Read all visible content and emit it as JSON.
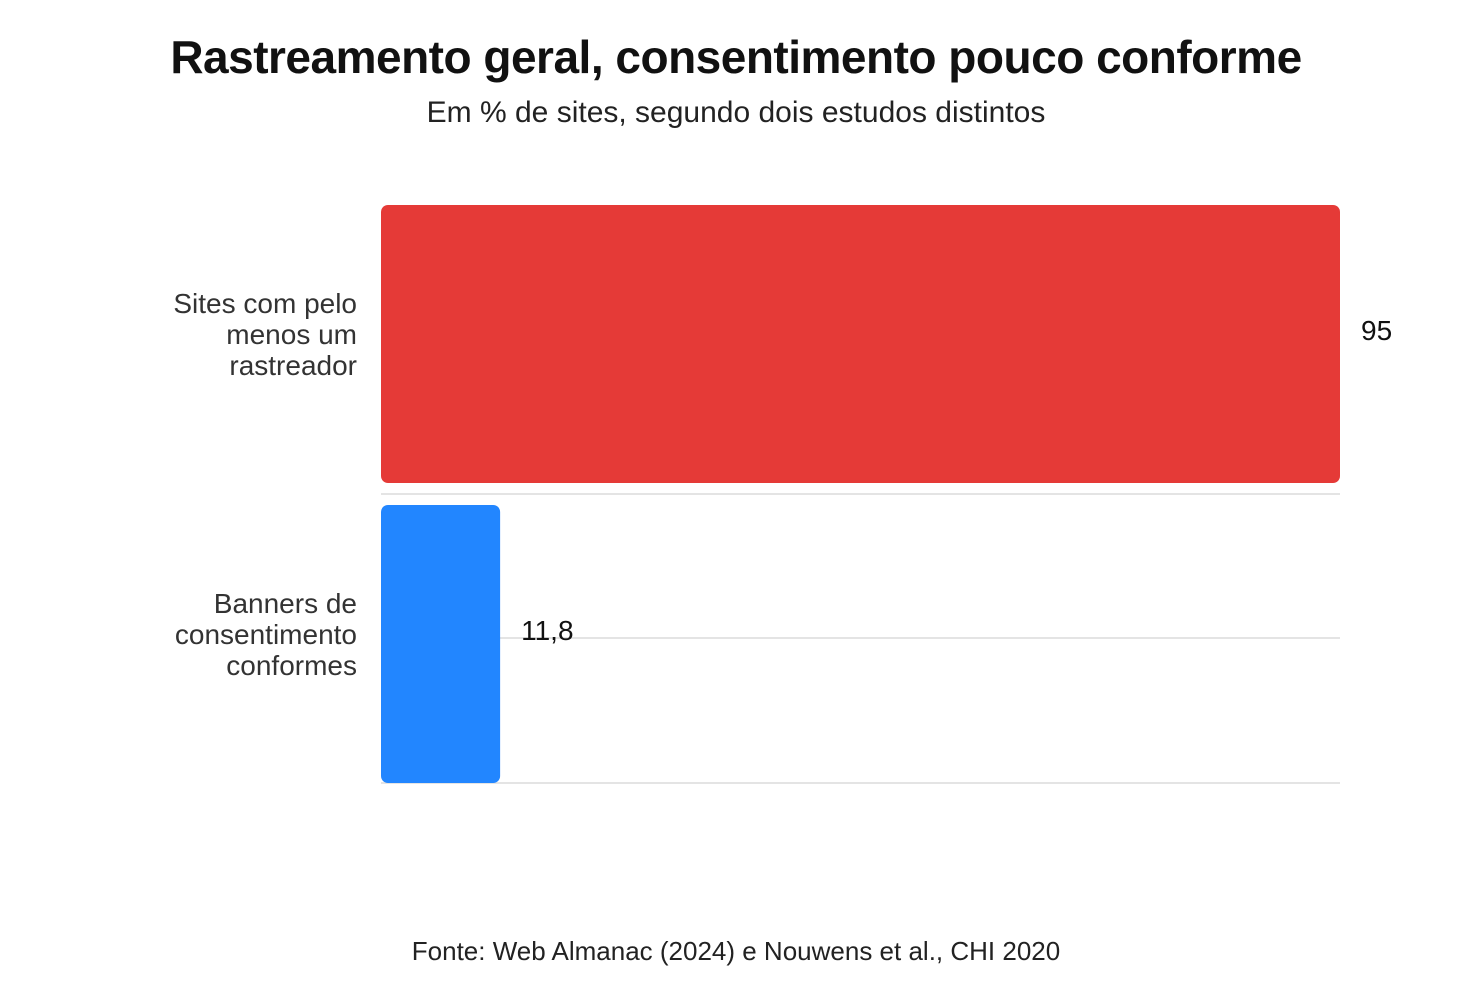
{
  "chart_data": {
    "type": "bar",
    "orientation": "horizontal",
    "title": "Rastreamento geral, consentimento pouco conforme",
    "subtitle": "Em % de sites, segundo dois estudos distintos",
    "categories": [
      "Sites com pelo menos um rastreador",
      "Banners de consentimento conformes"
    ],
    "category_lines": [
      [
        "Sites com pelo",
        "menos um",
        "rastreador"
      ],
      [
        "Banners de",
        "consentimento",
        "conformes"
      ]
    ],
    "values": [
      95,
      11.8
    ],
    "value_labels": [
      "95",
      "11,8"
    ],
    "colors": [
      "#e53a37",
      "#2286ff"
    ],
    "xlim": [
      0,
      95
    ],
    "xlabel": "",
    "ylabel": "",
    "grid": true,
    "source": "Fonte: Web Almanac (2024) e Nouwens et al., CHI 2020"
  }
}
